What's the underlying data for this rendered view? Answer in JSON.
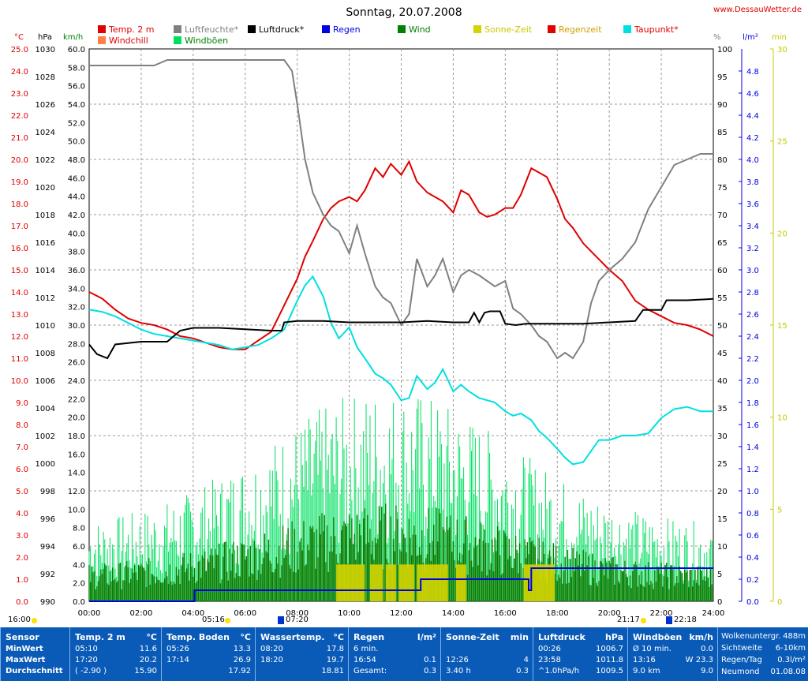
{
  "header": {
    "title": "Sonntag, 20.07.2008",
    "site": "www.DessauWetter.de"
  },
  "legend": [
    {
      "label": "Temp. 2 m",
      "color": "#e00000",
      "text_color": "#e00000"
    },
    {
      "label": "Luftfeuchte*",
      "color": "#808080",
      "text_color": "#808080"
    },
    {
      "label": "Luftdruck*",
      "color": "#000000",
      "text_color": "#000000"
    },
    {
      "label": "Regen",
      "color": "#0000e0",
      "text_color": "#0000e0"
    },
    {
      "label": "Wind",
      "color": "#008000",
      "text_color": "#008000"
    },
    {
      "label": "Sonne-Zeit",
      "color": "#d4d400",
      "text_color": "#c8c800"
    },
    {
      "label": "Regenzeit",
      "color": "#e00000",
      "text_color": "#d0a000"
    },
    {
      "label": "Taupunkt*",
      "color": "#00e0e0",
      "text_color": "#e00000"
    },
    {
      "label": "Windchill",
      "color": "#ff8040",
      "text_color": "#e00000"
    },
    {
      "label": "Windböen",
      "color": "#00e060",
      "text_color": "#008000"
    }
  ],
  "axes": {
    "temp_unit": "°C",
    "pressure_unit": "hPa",
    "wind_unit": "km/h",
    "humidity_unit": "%",
    "rain_unit": "l/m²",
    "sun_unit": "min",
    "temp_range": [
      0.0,
      25.0
    ],
    "pressure_range": [
      990,
      1030
    ],
    "wind_range": [
      0.0,
      60.0
    ],
    "humidity_range": [
      0,
      100
    ],
    "rain_range": [
      0.0,
      5.0
    ],
    "sun_range": [
      0,
      30
    ],
    "temp_ticks": [
      "0.0",
      "1.0",
      "2.0",
      "3.0",
      "4.0",
      "5.0",
      "6.0",
      "7.0",
      "8.0",
      "9.0",
      "10.0",
      "11.0",
      "12.0",
      "13.0",
      "14.0",
      "15.0",
      "16.0",
      "17.0",
      "18.0",
      "19.0",
      "20.0",
      "21.0",
      "22.0",
      "23.0",
      "24.0",
      "25.0"
    ],
    "pressure_ticks": [
      "990",
      "992",
      "994",
      "996",
      "998",
      "1000",
      "1002",
      "1004",
      "1006",
      "1008",
      "1010",
      "1012",
      "1014",
      "1016",
      "1018",
      "1020",
      "1022",
      "1024",
      "1026",
      "1028",
      "1030"
    ],
    "wind_ticks": [
      "0.0",
      "2.0",
      "4.0",
      "6.0",
      "8.0",
      "10.0",
      "12.0",
      "14.0",
      "16.0",
      "18.0",
      "20.0",
      "22.0",
      "24.0",
      "26.0",
      "28.0",
      "30.0",
      "32.0",
      "34.0",
      "36.0",
      "38.0",
      "40.0",
      "42.0",
      "44.0",
      "46.0",
      "48.0",
      "50.0",
      "52.0",
      "54.0",
      "56.0",
      "58.0",
      "60.0"
    ],
    "humidity_ticks": [
      "0",
      "5",
      "10",
      "15",
      "20",
      "25",
      "30",
      "35",
      "40",
      "45",
      "50",
      "55",
      "60",
      "65",
      "70",
      "75",
      "80",
      "85",
      "90",
      "95",
      "100"
    ],
    "rain_ticks": [
      "0.0",
      "0.2",
      "0.4",
      "0.6",
      "0.8",
      "1.0",
      "1.2",
      "1.4",
      "1.6",
      "1.8",
      "2.0",
      "2.2",
      "2.4",
      "2.6",
      "2.8",
      "3.0",
      "3.2",
      "3.4",
      "3.6",
      "3.8",
      "4.0",
      "4.2",
      "4.4",
      "4.6",
      "4.8"
    ],
    "sun_ticks": [
      "0",
      "5",
      "10",
      "15",
      "20",
      "25",
      "30"
    ],
    "time_ticks": [
      "00:00",
      "02:00",
      "04:00",
      "06:00",
      "08:00",
      "10:00",
      "12:00",
      "14:00",
      "16:00",
      "18:00",
      "20:00",
      "22:00",
      "24:00"
    ]
  },
  "sun_markers": {
    "left": "16:00",
    "rise": "05:16",
    "moonset": "07:20",
    "set": "21:17",
    "moonrise": "22:18"
  },
  "chart_data": {
    "type": "line",
    "x_unit": "hours",
    "grid": true,
    "series": [
      {
        "name": "Temp. 2 m",
        "axis": "temp",
        "color": "#e00000",
        "x": [
          0,
          0.5,
          1,
          1.5,
          2,
          2.5,
          3,
          3.5,
          4,
          4.5,
          5,
          5.5,
          6,
          6.5,
          7,
          7.5,
          8,
          8.3,
          8.6,
          9,
          9.3,
          9.6,
          10,
          10.3,
          10.6,
          11,
          11.3,
          11.6,
          12,
          12.3,
          12.6,
          13,
          13.3,
          13.6,
          14,
          14.3,
          14.6,
          15,
          15.3,
          15.6,
          16,
          16.3,
          16.6,
          17,
          17.3,
          17.6,
          18,
          18.3,
          18.6,
          19,
          19.5,
          20,
          20.5,
          21,
          21.5,
          22,
          22.5,
          23,
          23.5,
          24
        ],
        "y": [
          14.0,
          13.7,
          13.2,
          12.8,
          12.6,
          12.5,
          12.3,
          12.0,
          11.9,
          11.7,
          11.5,
          11.4,
          11.4,
          11.8,
          12.2,
          13.4,
          14.6,
          15.6,
          16.3,
          17.3,
          17.8,
          18.1,
          18.3,
          18.1,
          18.6,
          19.6,
          19.2,
          19.8,
          19.3,
          19.9,
          19.0,
          18.5,
          18.3,
          18.1,
          17.6,
          18.6,
          18.4,
          17.6,
          17.4,
          17.5,
          17.8,
          17.8,
          18.4,
          19.6,
          19.4,
          19.2,
          18.2,
          17.3,
          16.9,
          16.2,
          15.6,
          15.0,
          14.5,
          13.6,
          13.2,
          12.9,
          12.6,
          12.5,
          12.3,
          12.0
        ]
      },
      {
        "name": "Taupunkt*",
        "axis": "temp",
        "color": "#00e0e0",
        "x": [
          0,
          0.5,
          1,
          1.5,
          2,
          2.5,
          3,
          3.5,
          4,
          4.5,
          5,
          5.5,
          6,
          6.5,
          7,
          7.5,
          8,
          8.3,
          8.6,
          9,
          9.3,
          9.6,
          10,
          10.3,
          10.6,
          11,
          11.3,
          11.6,
          12,
          12.3,
          12.6,
          13,
          13.3,
          13.6,
          14,
          14.3,
          14.6,
          15,
          15.3,
          15.6,
          16,
          16.3,
          16.6,
          17,
          17.3,
          17.6,
          18,
          18.3,
          18.6,
          19,
          19.3,
          19.6,
          20,
          20.5,
          21,
          21.5,
          22,
          22.5,
          23,
          23.5,
          24
        ],
        "y": [
          13.2,
          13.1,
          12.9,
          12.6,
          12.3,
          12.1,
          12.0,
          11.9,
          11.8,
          11.7,
          11.6,
          11.4,
          11.5,
          11.6,
          11.9,
          12.3,
          13.6,
          14.3,
          14.7,
          13.8,
          12.6,
          11.9,
          12.4,
          11.5,
          11.0,
          10.3,
          10.1,
          9.8,
          9.1,
          9.2,
          10.2,
          9.6,
          9.9,
          10.5,
          9.5,
          9.8,
          9.5,
          9.2,
          9.1,
          9.0,
          8.6,
          8.4,
          8.5,
          8.2,
          7.7,
          7.4,
          6.9,
          6.5,
          6.2,
          6.3,
          6.8,
          7.3,
          7.3,
          7.5,
          7.5,
          7.6,
          8.3,
          8.7,
          8.8,
          8.6,
          8.6
        ]
      },
      {
        "name": "Luftfeuchte*",
        "axis": "humidity",
        "color": "#808080",
        "x": [
          0,
          1,
          2,
          2.5,
          3,
          3.5,
          4,
          5,
          6,
          7,
          7.5,
          7.8,
          8,
          8.3,
          8.6,
          9,
          9.3,
          9.6,
          10,
          10.3,
          10.6,
          11,
          11.3,
          11.6,
          12,
          12.3,
          12.6,
          13,
          13.3,
          13.6,
          14,
          14.3,
          14.6,
          15,
          15.3,
          15.6,
          16,
          16.3,
          16.6,
          17,
          17.3,
          17.6,
          18,
          18.3,
          18.6,
          19,
          19.3,
          19.6,
          20,
          20.5,
          21,
          21.5,
          22,
          22.5,
          23,
          23.5,
          24
        ],
        "y": [
          97,
          97,
          97,
          97,
          98,
          98,
          98,
          98,
          98,
          98,
          98,
          96,
          90,
          80,
          74,
          70,
          68,
          67,
          63,
          68,
          63,
          57,
          55,
          54,
          50,
          52,
          62,
          57,
          59,
          62,
          56,
          59,
          60,
          59,
          58,
          57,
          58,
          53,
          52,
          50,
          48,
          47,
          44,
          45,
          44,
          47,
          54,
          58,
          60,
          62,
          65,
          71,
          75,
          79,
          80,
          81,
          81
        ]
      },
      {
        "name": "Luftdruck*",
        "axis": "pressure",
        "color": "#000000",
        "x": [
          0,
          0.3,
          0.7,
          1,
          2,
          2.5,
          3,
          3.5,
          4,
          5,
          6,
          7,
          7.4,
          7.5,
          8,
          9,
          10,
          11,
          12,
          13,
          14,
          14.6,
          14.8,
          15,
          15.2,
          15.4,
          15.8,
          16,
          16.4,
          16.8,
          17,
          18,
          19,
          20,
          21,
          21.3,
          22,
          22.2,
          22.5,
          23,
          24
        ],
        "y": [
          1008.6,
          1007.9,
          1007.6,
          1008.6,
          1008.8,
          1008.8,
          1008.8,
          1009.6,
          1009.8,
          1009.8,
          1009.7,
          1009.6,
          1009.6,
          1010.2,
          1010.3,
          1010.3,
          1010.2,
          1010.2,
          1010.2,
          1010.3,
          1010.2,
          1010.2,
          1010.9,
          1010.2,
          1010.9,
          1011.0,
          1011.0,
          1010.1,
          1010.0,
          1010.1,
          1010.1,
          1010.1,
          1010.1,
          1010.2,
          1010.3,
          1011.1,
          1011.1,
          1011.8,
          1011.8,
          1011.8,
          1011.9
        ]
      },
      {
        "name": "Regen",
        "axis": "rain",
        "color": "#0000e0",
        "x": [
          0,
          4.05,
          4.05,
          12.75,
          12.75,
          16.9,
          16.9,
          17.0,
          17.0,
          24
        ],
        "y": [
          0,
          0,
          0.1,
          0.1,
          0.2,
          0.2,
          0.1,
          0.1,
          0.3,
          0.3
        ]
      },
      {
        "name": "Wind",
        "axis": "wind",
        "color": "#008000",
        "type": "bar",
        "x_start": 0,
        "x_end": 24,
        "avg": 9.0,
        "max": 23.3
      },
      {
        "name": "Windböen",
        "axis": "wind",
        "color": "#00e060",
        "type": "bar",
        "x_start": 0,
        "x_end": 24,
        "max": 23.3
      },
      {
        "name": "Sonne-Zeit",
        "axis": "sun",
        "color": "#d4d400",
        "type": "bar",
        "blocks": [
          [
            9.5,
            10.6,
            2
          ],
          [
            10.8,
            11.3,
            2
          ],
          [
            11.4,
            11.8,
            2
          ],
          [
            11.9,
            12.5,
            2
          ],
          [
            12.6,
            13.8,
            2
          ],
          [
            14.1,
            14.5,
            2
          ],
          [
            16.7,
            17.9,
            2
          ]
        ]
      }
    ]
  },
  "footer": {
    "cols": [
      {
        "head": "Sensor",
        "unit": "",
        "rows": [
          [
            "MinWert",
            ""
          ],
          [
            "MaxWert",
            ""
          ],
          [
            "Durchschnitt",
            ""
          ]
        ]
      },
      {
        "head": "Temp. 2 m",
        "unit": "°C",
        "rows": [
          [
            "05:10",
            "11.6"
          ],
          [
            "17:20",
            "20.2"
          ],
          [
            "( -2.90 )",
            "15.90"
          ]
        ]
      },
      {
        "head": "Temp. Boden",
        "unit": "°C",
        "rows": [
          [
            "05:26",
            "13.3"
          ],
          [
            "17:14",
            "26.9"
          ],
          [
            "",
            "17.92"
          ]
        ]
      },
      {
        "head": "Wassertemp.",
        "unit": "°C",
        "rows": [
          [
            "08:20",
            "17.8"
          ],
          [
            "18:20",
            "19.7"
          ],
          [
            "",
            "18.81"
          ]
        ]
      },
      {
        "head": "Regen",
        "unit": "l/m²",
        "rows": [
          [
            "6 min.",
            ""
          ],
          [
            "16:54",
            "0.1"
          ],
          [
            "Gesamt:",
            "0.3"
          ]
        ]
      },
      {
        "head": "Sonne-Zeit",
        "unit": "min",
        "rows": [
          [
            "",
            ""
          ],
          [
            "12:26",
            "4"
          ],
          [
            "3.40 h",
            "0.3"
          ]
        ]
      },
      {
        "head": "Luftdruck",
        "unit": "hPa",
        "rows": [
          [
            "00:26",
            "1006.7"
          ],
          [
            "23:58",
            "1011.8"
          ],
          [
            "^1.0hPa/h",
            "1009.5"
          ]
        ]
      },
      {
        "head": "Windböen",
        "unit": "km/h",
        "rows": [
          [
            "Ø 10 min.",
            "0.0"
          ],
          [
            "13:16",
            "W 23.3"
          ],
          [
            "9.0 km",
            "9.0"
          ]
        ]
      },
      {
        "head": "",
        "unit": "",
        "rows": [
          [
            "Wolkenuntergr.",
            "488m"
          ],
          [
            "Sichtweite",
            "6-10km"
          ],
          [
            "Regen/Tag",
            "0.3l/m²"
          ],
          [
            "Neumond",
            "01.08.08"
          ]
        ]
      }
    ]
  }
}
